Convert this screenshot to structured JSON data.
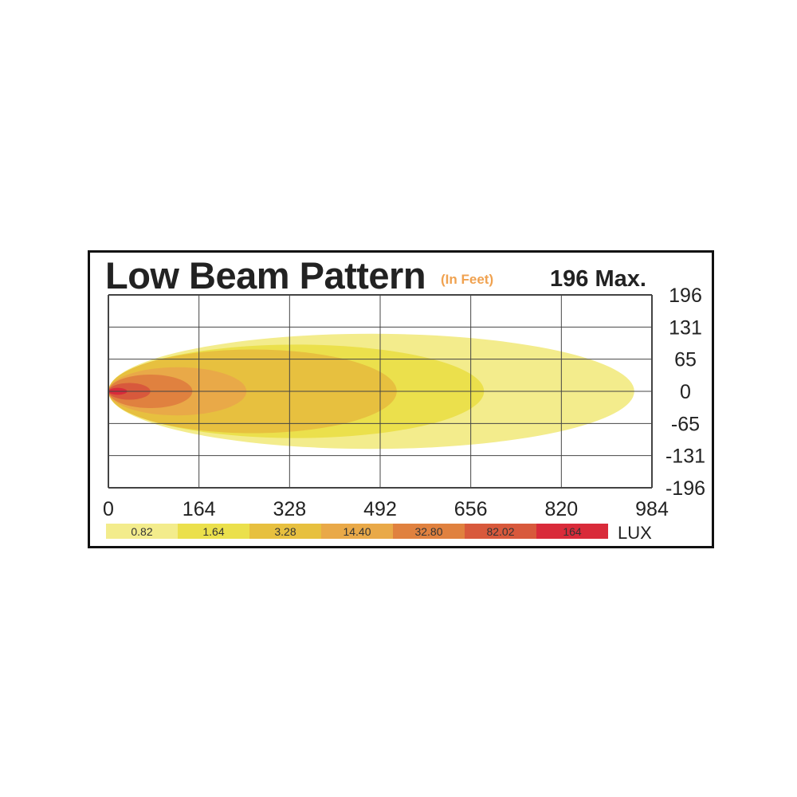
{
  "chart_data": {
    "type": "heatmap",
    "title": "Low Beam Pattern",
    "subtitle": "(In Feet)",
    "max_label": "196 Max.",
    "x_ticks": [
      "0",
      "164",
      "328",
      "492",
      "656",
      "820",
      "984"
    ],
    "y_ticks": [
      "196",
      "131",
      "65",
      "0",
      "-65",
      "-131",
      "-196"
    ],
    "xlim": [
      0,
      984
    ],
    "ylim": [
      -196,
      196
    ],
    "grid": true,
    "zones": [
      {
        "lux": "0.82",
        "color": "#f3ec8c",
        "reach": 952,
        "half_width": 117
      },
      {
        "lux": "1.64",
        "color": "#ebe04c",
        "reach": 680,
        "half_width": 95
      },
      {
        "lux": "3.28",
        "color": "#e7c03f",
        "reach": 522,
        "half_width": 85
      },
      {
        "lux": "14.40",
        "color": "#e9a948",
        "reach": 250,
        "half_width": 49
      },
      {
        "lux": "32.80",
        "color": "#e0813f",
        "reach": 152,
        "half_width": 34
      },
      {
        "lux": "82.02",
        "color": "#d8593c",
        "reach": 76,
        "half_width": 17
      },
      {
        "lux": "164",
        "color": "#d92b3a",
        "reach": 34,
        "half_width": 7
      }
    ],
    "legend": {
      "entries": [
        "0.82",
        "1.64",
        "3.28",
        "14.40",
        "32.80",
        "82.02",
        "164"
      ],
      "unit": "LUX",
      "placement": "bottom"
    }
  }
}
